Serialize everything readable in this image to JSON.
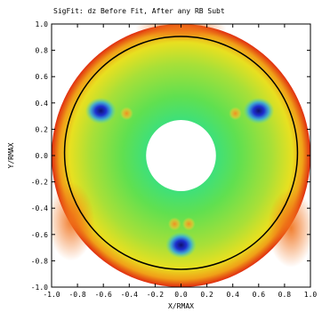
{
  "chart_data": {
    "type": "heatmap",
    "title": "SigFit: dz Before Fit, After any RB Subt",
    "xlabel": "X/RMAX",
    "ylabel": "Y/RMAX",
    "xlim": [
      -1.0,
      1.0
    ],
    "ylim": [
      -1.0,
      1.0
    ],
    "x_ticks": [
      "-1.0",
      "-0.8",
      "-0.6",
      "-0.4",
      "-0.2",
      "0.0",
      "0.2",
      "0.4",
      "0.6",
      "0.8",
      "1.0"
    ],
    "y_ticks": [
      "1.0",
      "0.8",
      "0.6",
      "0.4",
      "0.2",
      "0.0",
      "-0.2",
      "-0.4",
      "-0.6",
      "-0.8",
      "-1.0"
    ],
    "annulus": {
      "outer_radius": 1.0,
      "inner_radius": 0.27
    },
    "reference_circle": {
      "radius": 0.9
    },
    "features": [
      {
        "kind": "low",
        "x": -0.62,
        "y": 0.34,
        "color": "#1a1ab0"
      },
      {
        "kind": "low",
        "x": 0.6,
        "y": 0.34,
        "color": "#1a1ab0"
      },
      {
        "kind": "low",
        "x": 0.0,
        "y": -0.68,
        "color": "#1a1ab0"
      },
      {
        "kind": "high",
        "x": -0.42,
        "y": 0.32,
        "color": "#f0a020"
      },
      {
        "kind": "high",
        "x": 0.42,
        "y": 0.32,
        "color": "#f0a020"
      },
      {
        "kind": "high",
        "x": -0.05,
        "y": -0.52,
        "color": "#f0a020"
      },
      {
        "kind": "high",
        "x": 0.06,
        "y": -0.52,
        "color": "#f0a020"
      }
    ],
    "colors": {
      "base": "#9be040",
      "center": "#50e060",
      "edge": "#e83010",
      "circle": "#000000"
    }
  }
}
